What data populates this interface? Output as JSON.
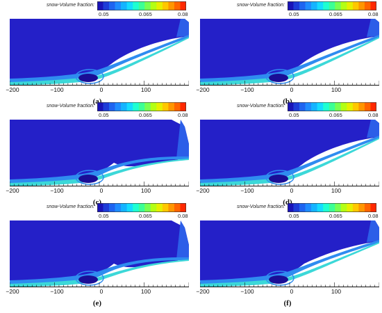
{
  "colorbar": {
    "title": "snow-Volume fraction:",
    "ticks": [
      "0.05",
      "0.065",
      "0.08"
    ],
    "colors": [
      "#1a14b8",
      "#1e3cd8",
      "#1e64f0",
      "#1e8cff",
      "#14b4ff",
      "#14dcff",
      "#1effd2",
      "#3cff96",
      "#78ff50",
      "#b4ff14",
      "#e6f000",
      "#ffc800",
      "#ff9600",
      "#ff6400",
      "#ff2800"
    ]
  },
  "x_ticks": [
    "−200",
    "−100",
    "0",
    "100"
  ],
  "panels": [
    {
      "label": "(a)"
    },
    {
      "label": "(b)"
    },
    {
      "label": "(c)"
    },
    {
      "label": "(d)"
    },
    {
      "label": "(e)"
    },
    {
      "label": "(f)"
    }
  ]
}
